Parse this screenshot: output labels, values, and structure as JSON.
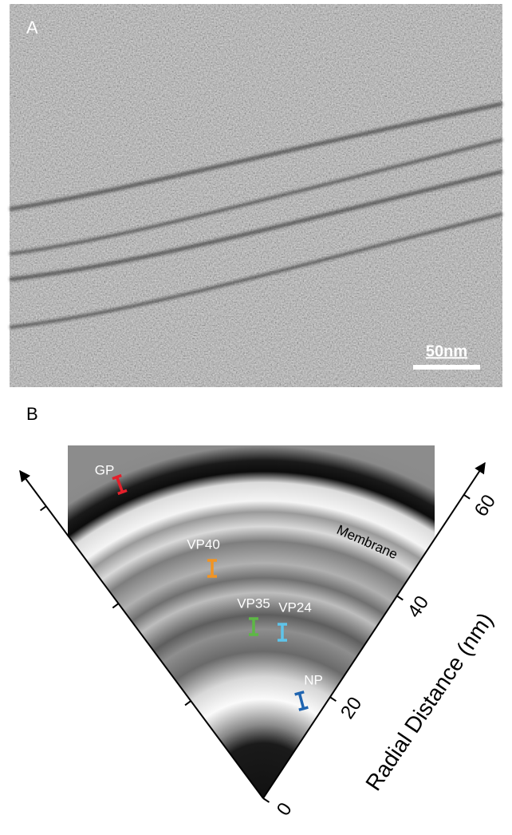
{
  "panel_a": {
    "label": "A",
    "scale_bar": "50nm"
  },
  "panel_b": {
    "label": "B",
    "axis_label": "Radial Distance (nm)",
    "axis_ticks": [
      0,
      20,
      40,
      60
    ],
    "membrane_label": "Membrane",
    "proteins": [
      {
        "name": "GP",
        "color": "#e3202b"
      },
      {
        "name": "VP40",
        "color": "#f29422"
      },
      {
        "name": "VP35",
        "color": "#5db845"
      },
      {
        "name": "VP24",
        "color": "#5ec4ea"
      },
      {
        "name": "NP",
        "color": "#1f64b0"
      }
    ]
  }
}
